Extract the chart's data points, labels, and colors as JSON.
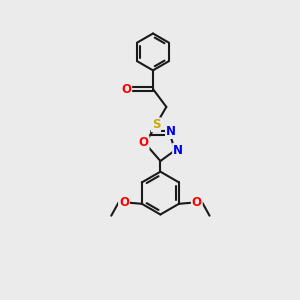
{
  "background_color": "#ebebeb",
  "bond_color": "#1a1a1a",
  "bond_width": 1.5,
  "atom_colors": {
    "O": "#ff0000",
    "N": "#0000ee",
    "S": "#ccaa00",
    "C": "#1a1a1a"
  },
  "font_size": 8.5,
  "fig_size": [
    3.0,
    3.0
  ],
  "dpi": 100
}
